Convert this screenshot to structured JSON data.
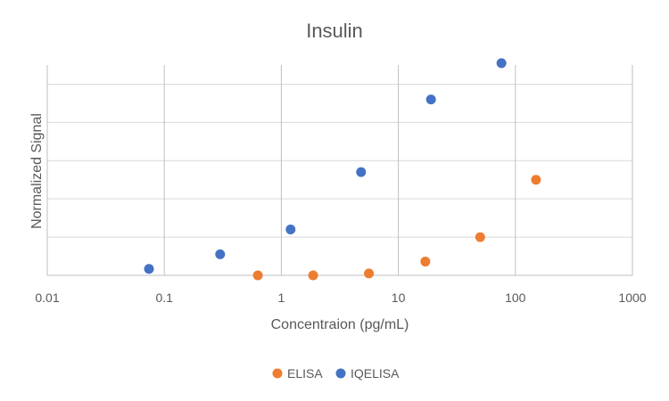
{
  "chart_data": {
    "type": "scatter",
    "title": "Insulin",
    "xlabel": "Concentraion (pg/mL)",
    "ylabel": "Normalized Signal",
    "xscale": "log",
    "xlim": [
      0.01,
      1000
    ],
    "xticks": [
      0.01,
      0.1,
      1,
      10,
      100,
      1000
    ],
    "xtick_labels": [
      "0.01",
      "0.1",
      "1",
      "10",
      "100",
      "1000"
    ],
    "ylim": [
      0,
      5.5
    ],
    "yticks": [
      0,
      1,
      2,
      3,
      4,
      5
    ],
    "grid": "on",
    "legend_position": "bottom",
    "series": [
      {
        "name": "ELISA",
        "color": "#ED7D31",
        "x": [
          0.63,
          1.87,
          5.6,
          17,
          50,
          150
        ],
        "y": [
          0.0,
          0.0,
          0.05,
          0.36,
          1.0,
          2.5
        ]
      },
      {
        "name": "IQELISA",
        "color": "#4472C4",
        "x": [
          0.074,
          0.3,
          1.2,
          4.8,
          19,
          76
        ],
        "y": [
          0.17,
          0.55,
          1.2,
          2.7,
          4.6,
          5.55
        ]
      }
    ]
  }
}
